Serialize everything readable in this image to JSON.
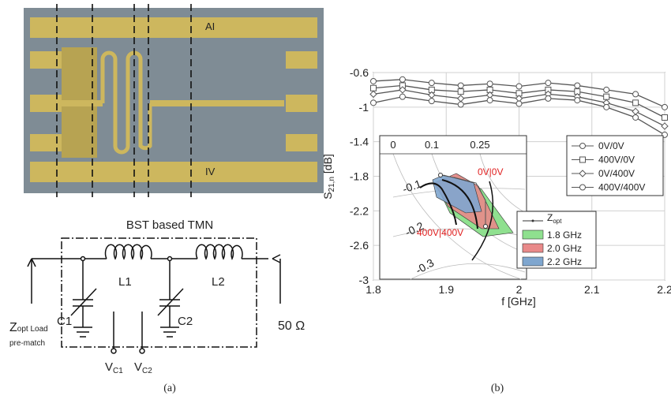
{
  "figure_a": {
    "photo_labels": [
      "AI",
      "IV"
    ],
    "circuit_title": "BST based TMN",
    "L1": "L1",
    "L2": "L2",
    "C1": "C1",
    "C2": "C2",
    "source": {
      "main": "Z",
      "sub": "opt Load",
      "note": "pre-match"
    },
    "load": "50 Ω",
    "vc1": {
      "main": "V",
      "sub": "C1"
    },
    "vc2": {
      "main": "V",
      "sub": "C2"
    },
    "caption": "(a)"
  },
  "chart_data": {
    "type": "line",
    "caption": "(b)",
    "x_label": "f [GHz]",
    "y_label": {
      "main": "S",
      "sub": "21,n",
      "unit": " [dB]"
    },
    "x": [
      1.8,
      1.84,
      1.88,
      1.92,
      1.96,
      2.0,
      2.04,
      2.08,
      2.12,
      2.16,
      2.2
    ],
    "series": [
      {
        "name": "0V/0V",
        "color": "#555555",
        "marker": "circle",
        "values": [
          -0.7,
          -0.68,
          -0.72,
          -0.75,
          -0.73,
          -0.76,
          -0.72,
          -0.75,
          -0.8,
          -0.85,
          -1.0
        ]
      },
      {
        "name": "400V/0V",
        "color": "#555555",
        "marker": "square",
        "values": [
          -0.78,
          -0.75,
          -0.8,
          -0.82,
          -0.8,
          -0.84,
          -0.8,
          -0.82,
          -0.88,
          -0.95,
          -1.12
        ]
      },
      {
        "name": "0V/400V",
        "color": "#555555",
        "marker": "diamond",
        "values": [
          -0.85,
          -0.8,
          -0.86,
          -0.9,
          -0.86,
          -0.9,
          -0.85,
          -0.88,
          -0.95,
          -1.05,
          -1.22
        ]
      },
      {
        "name": "400V/400V",
        "color": "#555555",
        "marker": "circle",
        "values": [
          -0.95,
          -0.88,
          -0.93,
          -0.97,
          -0.92,
          -0.96,
          -0.9,
          -0.92,
          -1.0,
          -1.12,
          -1.32
        ]
      }
    ],
    "xlim": [
      1.8,
      2.2
    ],
    "xticks": [
      1.8,
      1.9,
      2,
      2.1,
      2.2
    ],
    "ylim": [
      -3,
      -0.6
    ],
    "yticks": [
      -0.6,
      -1,
      -1.4,
      -1.8,
      -2.2,
      -2.6,
      -3
    ],
    "grid": true
  },
  "inset": {
    "top_ticks": [
      "0",
      "0.1",
      "0.25"
    ],
    "arc_labels": [
      "-0.1",
      "-0.2",
      "-0.3"
    ],
    "state_top": "0V|0V",
    "state_bottom": "400V|400V",
    "legend": {
      "zopt": {
        "main": "Z",
        "sub": "opt"
      },
      "bands": [
        {
          "label": "1.8 GHz",
          "color": "#8fe08f"
        },
        {
          "label": "2.0 GHz",
          "color": "#e98a8a"
        },
        {
          "label": "2.2 GHz",
          "color": "#7fa6cf"
        }
      ]
    }
  }
}
